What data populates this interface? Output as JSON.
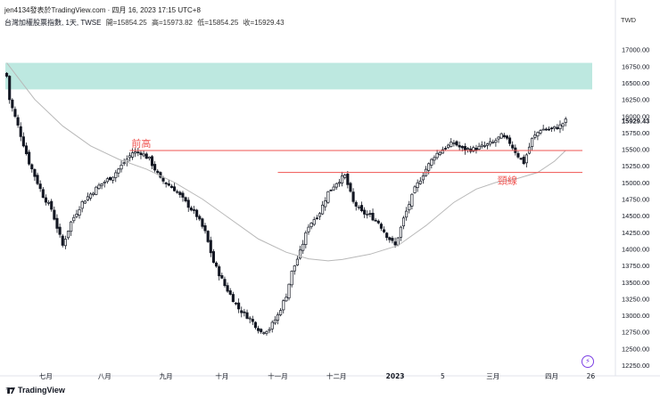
{
  "header": {
    "title_line": "jen4134發表於TradingView.com · 四月 16, 2023 17:15 UTC+8",
    "symbol_line": "台灣加權股票指數, 1天, TWSE",
    "open": "開=15854.25",
    "high": "高=15973.82",
    "low": "低=15854.25",
    "close": "收=15929.43"
  },
  "currency": "TWD",
  "brand": "TradingView",
  "icons": {
    "brand_logo": "tradingview-logo-icon",
    "bolt": "lightning-bolt-icon"
  },
  "colors": {
    "up": "#131722",
    "down": "#131722",
    "ma": "#b8b8b8",
    "annotation": "#ef5350",
    "zone": "#b2e4da"
  },
  "chart_data": {
    "type": "candlestick",
    "title": "台灣加權股票指數, 1天, TWSE",
    "ylim": [
      12250,
      17250
    ],
    "y_ticks": [
      17000,
      16750,
      16500,
      16250,
      16000,
      15750,
      15500,
      15250,
      15000,
      14750,
      14500,
      14250,
      14000,
      13750,
      13500,
      13250,
      13000,
      12750,
      12500,
      12250
    ],
    "y_tick_labels": [
      "17000.00",
      "16750.00",
      "16500.00",
      "16250.00",
      "16000.00",
      "15750.00",
      "15500.00",
      "15250.00",
      "15000.00",
      "14750.00",
      "14500.00",
      "14250.00",
      "14000.00",
      "13750.00",
      "13500.00",
      "13250.00",
      "13000.00",
      "12750.00",
      "12500.00",
      "12250.00"
    ],
    "last_price_label": "15929.43",
    "x_labels": [
      {
        "label": "七月",
        "index": 14
      },
      {
        "label": "八月",
        "index": 35
      },
      {
        "label": "九月",
        "index": 57
      },
      {
        "label": "十月",
        "index": 77
      },
      {
        "label": "十一月",
        "index": 97
      },
      {
        "label": "十二月",
        "index": 118
      },
      {
        "label": "2023",
        "index": 139
      },
      {
        "label": "5",
        "index": 156
      },
      {
        "label": "三月",
        "index": 174
      },
      {
        "label": "四月",
        "index": 195
      },
      {
        "label": "26",
        "index": 209
      }
    ],
    "anchors": [
      [
        0,
        16600
      ],
      [
        1,
        16250
      ],
      [
        4,
        15850
      ],
      [
        8,
        15300
      ],
      [
        13,
        14800
      ],
      [
        16,
        14600
      ],
      [
        20,
        14050
      ],
      [
        23,
        14400
      ],
      [
        27,
        14700
      ],
      [
        33,
        14950
      ],
      [
        38,
        15100
      ],
      [
        41,
        15250
      ],
      [
        45,
        15450
      ],
      [
        48,
        15450
      ],
      [
        51,
        15350
      ],
      [
        55,
        15050
      ],
      [
        60,
        14900
      ],
      [
        64,
        14700
      ],
      [
        68,
        14500
      ],
      [
        71,
        14250
      ],
      [
        74,
        13800
      ],
      [
        78,
        13450
      ],
      [
        83,
        13100
      ],
      [
        87,
        12950
      ],
      [
        91,
        12750
      ],
      [
        94,
        12800
      ],
      [
        97,
        13000
      ],
      [
        100,
        13300
      ],
      [
        102,
        13650
      ],
      [
        105,
        13950
      ],
      [
        108,
        14350
      ],
      [
        112,
        14550
      ],
      [
        115,
        14850
      ],
      [
        118,
        15000
      ],
      [
        121,
        15100
      ],
      [
        124,
        14700
      ],
      [
        127,
        14550
      ],
      [
        130,
        14500
      ],
      [
        133,
        14400
      ],
      [
        136,
        14200
      ],
      [
        139,
        14050
      ],
      [
        142,
        14450
      ],
      [
        146,
        14900
      ],
      [
        150,
        15200
      ],
      [
        153,
        15400
      ],
      [
        156,
        15500
      ],
      [
        160,
        15600
      ],
      [
        163,
        15500
      ],
      [
        167,
        15500
      ],
      [
        171,
        15550
      ],
      [
        174,
        15600
      ],
      [
        177,
        15700
      ],
      [
        180,
        15600
      ],
      [
        183,
        15400
      ],
      [
        185,
        15300
      ],
      [
        188,
        15650
      ],
      [
        191,
        15800
      ],
      [
        195,
        15800
      ],
      [
        198,
        15850
      ],
      [
        200,
        15929
      ]
    ],
    "moving_average": [
      [
        0,
        16800
      ],
      [
        10,
        16250
      ],
      [
        20,
        15850
      ],
      [
        30,
        15550
      ],
      [
        40,
        15350
      ],
      [
        50,
        15200
      ],
      [
        60,
        15000
      ],
      [
        70,
        14750
      ],
      [
        80,
        14450
      ],
      [
        90,
        14150
      ],
      [
        100,
        13950
      ],
      [
        108,
        13850
      ],
      [
        115,
        13820
      ],
      [
        120,
        13840
      ],
      [
        125,
        13880
      ],
      [
        130,
        13920
      ],
      [
        140,
        14050
      ],
      [
        150,
        14350
      ],
      [
        160,
        14700
      ],
      [
        168,
        14900
      ],
      [
        175,
        15000
      ],
      [
        182,
        15050
      ],
      [
        190,
        15150
      ],
      [
        196,
        15320
      ],
      [
        200,
        15480
      ]
    ],
    "resistance_zone": [
      16400,
      16800
    ],
    "horizontal_lines": [
      {
        "label": "前高",
        "value": 15480,
        "from_index": 44,
        "to_index": 206
      },
      {
        "label": "頸線",
        "value": 15150,
        "from_index": 97,
        "to_index": 206
      }
    ]
  }
}
